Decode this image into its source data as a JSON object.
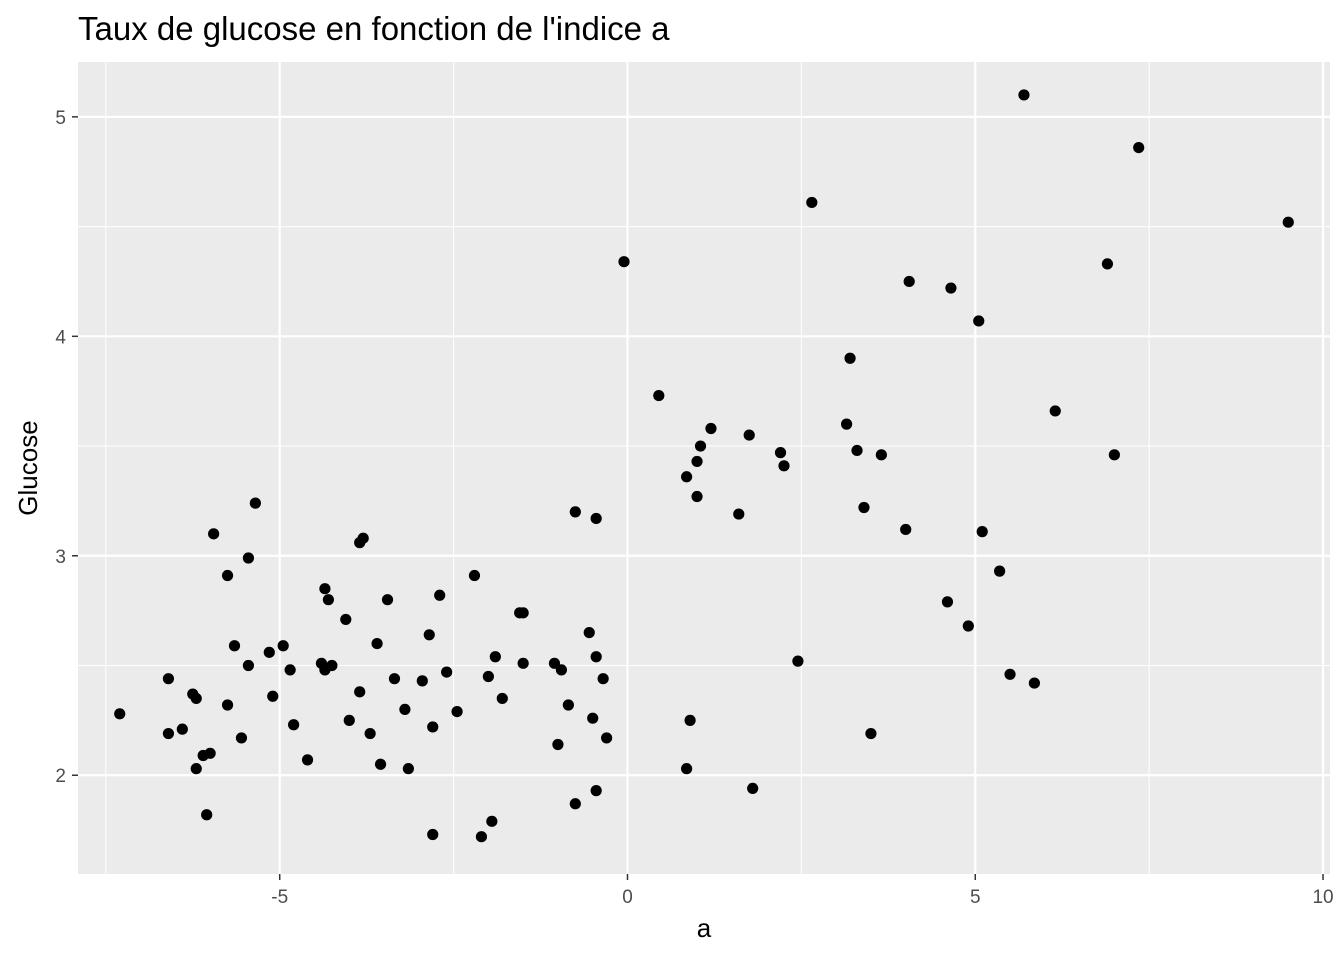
{
  "chart_data": {
    "type": "scatter",
    "title": "Taux de glucose en fonction de l'indice a",
    "xlabel": "a",
    "ylabel": "Glucose",
    "xlim": [
      -7.9,
      10.1
    ],
    "ylim": [
      1.55,
      5.25
    ],
    "x_ticks": [
      -5,
      0,
      5,
      10
    ],
    "x_tick_labels": [
      "-5",
      "0",
      "5",
      "10"
    ],
    "y_ticks": [
      2,
      3,
      4,
      5
    ],
    "y_tick_labels": [
      "2",
      "3",
      "4",
      "5"
    ],
    "grid": true,
    "legend": "none",
    "colors": {
      "panel": "#ebebeb",
      "grid": "#ffffff",
      "point": "#000000",
      "tick_label": "#4d4d4d"
    },
    "points": [
      {
        "x": -7.3,
        "y": 2.28
      },
      {
        "x": -6.6,
        "y": 2.44
      },
      {
        "x": -6.6,
        "y": 2.19
      },
      {
        "x": -6.4,
        "y": 2.21
      },
      {
        "x": -6.25,
        "y": 2.37
      },
      {
        "x": -6.2,
        "y": 2.35
      },
      {
        "x": -6.2,
        "y": 2.03
      },
      {
        "x": -6.1,
        "y": 2.09
      },
      {
        "x": -6.05,
        "y": 1.82
      },
      {
        "x": -6.0,
        "y": 2.1
      },
      {
        "x": -5.95,
        "y": 3.1
      },
      {
        "x": -5.75,
        "y": 2.32
      },
      {
        "x": -5.75,
        "y": 2.91
      },
      {
        "x": -5.65,
        "y": 2.59
      },
      {
        "x": -5.55,
        "y": 2.17
      },
      {
        "x": -5.45,
        "y": 2.5
      },
      {
        "x": -5.45,
        "y": 2.99
      },
      {
        "x": -5.35,
        "y": 3.24
      },
      {
        "x": -5.15,
        "y": 2.56
      },
      {
        "x": -5.1,
        "y": 2.36
      },
      {
        "x": -4.95,
        "y": 2.59
      },
      {
        "x": -4.85,
        "y": 2.48
      },
      {
        "x": -4.8,
        "y": 2.23
      },
      {
        "x": -4.6,
        "y": 2.07
      },
      {
        "x": -4.4,
        "y": 2.51
      },
      {
        "x": -4.35,
        "y": 2.85
      },
      {
        "x": -4.35,
        "y": 2.48
      },
      {
        "x": -4.3,
        "y": 2.8
      },
      {
        "x": -4.25,
        "y": 2.5
      },
      {
        "x": -4.05,
        "y": 2.71
      },
      {
        "x": -4.0,
        "y": 2.25
      },
      {
        "x": -3.85,
        "y": 3.06
      },
      {
        "x": -3.85,
        "y": 2.38
      },
      {
        "x": -3.8,
        "y": 3.08
      },
      {
        "x": -3.7,
        "y": 2.19
      },
      {
        "x": -3.6,
        "y": 2.6
      },
      {
        "x": -3.55,
        "y": 2.05
      },
      {
        "x": -3.45,
        "y": 2.8
      },
      {
        "x": -3.35,
        "y": 2.44
      },
      {
        "x": -3.2,
        "y": 2.3
      },
      {
        "x": -3.15,
        "y": 2.03
      },
      {
        "x": -2.95,
        "y": 2.43
      },
      {
        "x": -2.85,
        "y": 2.64
      },
      {
        "x": -2.8,
        "y": 2.22
      },
      {
        "x": -2.8,
        "y": 1.73
      },
      {
        "x": -2.7,
        "y": 2.82
      },
      {
        "x": -2.6,
        "y": 2.47
      },
      {
        "x": -2.45,
        "y": 2.29
      },
      {
        "x": -2.2,
        "y": 2.91
      },
      {
        "x": -2.1,
        "y": 1.72
      },
      {
        "x": -2.0,
        "y": 2.45
      },
      {
        "x": -1.95,
        "y": 1.79
      },
      {
        "x": -1.9,
        "y": 2.54
      },
      {
        "x": -1.8,
        "y": 2.35
      },
      {
        "x": -1.55,
        "y": 2.74
      },
      {
        "x": -1.5,
        "y": 2.51
      },
      {
        "x": -1.5,
        "y": 2.74
      },
      {
        "x": -1.05,
        "y": 2.51
      },
      {
        "x": -1.0,
        "y": 2.14
      },
      {
        "x": -0.95,
        "y": 2.48
      },
      {
        "x": -0.85,
        "y": 2.32
      },
      {
        "x": -0.75,
        "y": 3.2
      },
      {
        "x": -0.75,
        "y": 1.87
      },
      {
        "x": -0.55,
        "y": 2.65
      },
      {
        "x": -0.5,
        "y": 2.26
      },
      {
        "x": -0.45,
        "y": 3.17
      },
      {
        "x": -0.45,
        "y": 1.93
      },
      {
        "x": -0.45,
        "y": 2.54
      },
      {
        "x": -0.35,
        "y": 2.44
      },
      {
        "x": -0.3,
        "y": 2.17
      },
      {
        "x": -0.05,
        "y": 4.34
      },
      {
        "x": 0.45,
        "y": 3.73
      },
      {
        "x": 0.85,
        "y": 3.36
      },
      {
        "x": 0.85,
        "y": 2.03
      },
      {
        "x": 0.9,
        "y": 2.25
      },
      {
        "x": 1.0,
        "y": 3.43
      },
      {
        "x": 1.0,
        "y": 3.27
      },
      {
        "x": 1.05,
        "y": 3.5
      },
      {
        "x": 1.2,
        "y": 3.58
      },
      {
        "x": 1.6,
        "y": 3.19
      },
      {
        "x": 1.75,
        "y": 3.55
      },
      {
        "x": 1.8,
        "y": 1.94
      },
      {
        "x": 2.2,
        "y": 3.47
      },
      {
        "x": 2.25,
        "y": 3.41
      },
      {
        "x": 2.45,
        "y": 2.52
      },
      {
        "x": 2.65,
        "y": 4.61
      },
      {
        "x": 3.15,
        "y": 3.6
      },
      {
        "x": 3.2,
        "y": 3.9
      },
      {
        "x": 3.3,
        "y": 3.48
      },
      {
        "x": 3.4,
        "y": 3.22
      },
      {
        "x": 3.5,
        "y": 2.19
      },
      {
        "x": 3.65,
        "y": 3.46
      },
      {
        "x": 4.0,
        "y": 3.12
      },
      {
        "x": 4.05,
        "y": 4.25
      },
      {
        "x": 4.6,
        "y": 2.79
      },
      {
        "x": 4.65,
        "y": 4.22
      },
      {
        "x": 4.9,
        "y": 2.68
      },
      {
        "x": 5.05,
        "y": 4.07
      },
      {
        "x": 5.1,
        "y": 3.11
      },
      {
        "x": 5.35,
        "y": 2.93
      },
      {
        "x": 5.5,
        "y": 2.46
      },
      {
        "x": 5.7,
        "y": 5.1
      },
      {
        "x": 5.85,
        "y": 2.42
      },
      {
        "x": 6.15,
        "y": 3.66
      },
      {
        "x": 6.9,
        "y": 4.33
      },
      {
        "x": 7.0,
        "y": 3.46
      },
      {
        "x": 7.35,
        "y": 4.86
      },
      {
        "x": 9.5,
        "y": 4.52
      }
    ]
  }
}
